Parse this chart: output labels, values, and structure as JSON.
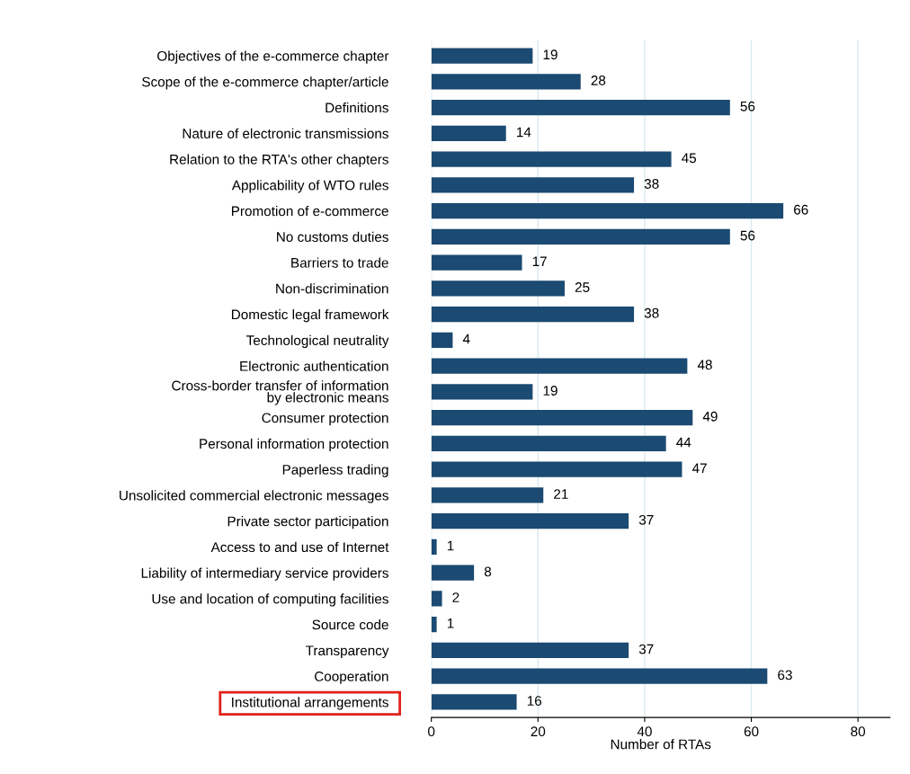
{
  "chart_data": {
    "type": "bar",
    "orientation": "horizontal",
    "xlabel": "Number of RTAs",
    "categories": [
      "Objectives of the e-commerce chapter",
      "Scope of the e-commerce chapter/article",
      "Definitions",
      "Nature of electronic transmissions",
      "Relation to the RTA's other chapters",
      "Applicability of WTO rules",
      "Promotion of e-commerce",
      "No customs duties",
      "Barriers to trade",
      "Non-discrimination",
      "Domestic legal framework",
      "Technological neutrality",
      "Electronic authentication",
      "Cross-border transfer of information\nby electronic means",
      "Consumer protection",
      "Personal information protection",
      "Paperless trading",
      "Unsolicited commercial electronic messages",
      "Private sector participation",
      "Access to and use of Internet",
      "Liability of intermediary service providers",
      "Use and location of computing facilities",
      "Source code",
      "Transparency",
      "Cooperation",
      "Institutional arrangements"
    ],
    "values": [
      19,
      28,
      56,
      14,
      45,
      38,
      66,
      56,
      17,
      25,
      38,
      4,
      48,
      19,
      49,
      44,
      47,
      21,
      37,
      1,
      8,
      2,
      1,
      37,
      63,
      16
    ],
    "color": "#1b4a72",
    "data_labels": true,
    "xlim": [
      0,
      86
    ],
    "xticks": [
      0,
      20,
      40,
      60,
      80
    ],
    "grid": "x"
  }
}
